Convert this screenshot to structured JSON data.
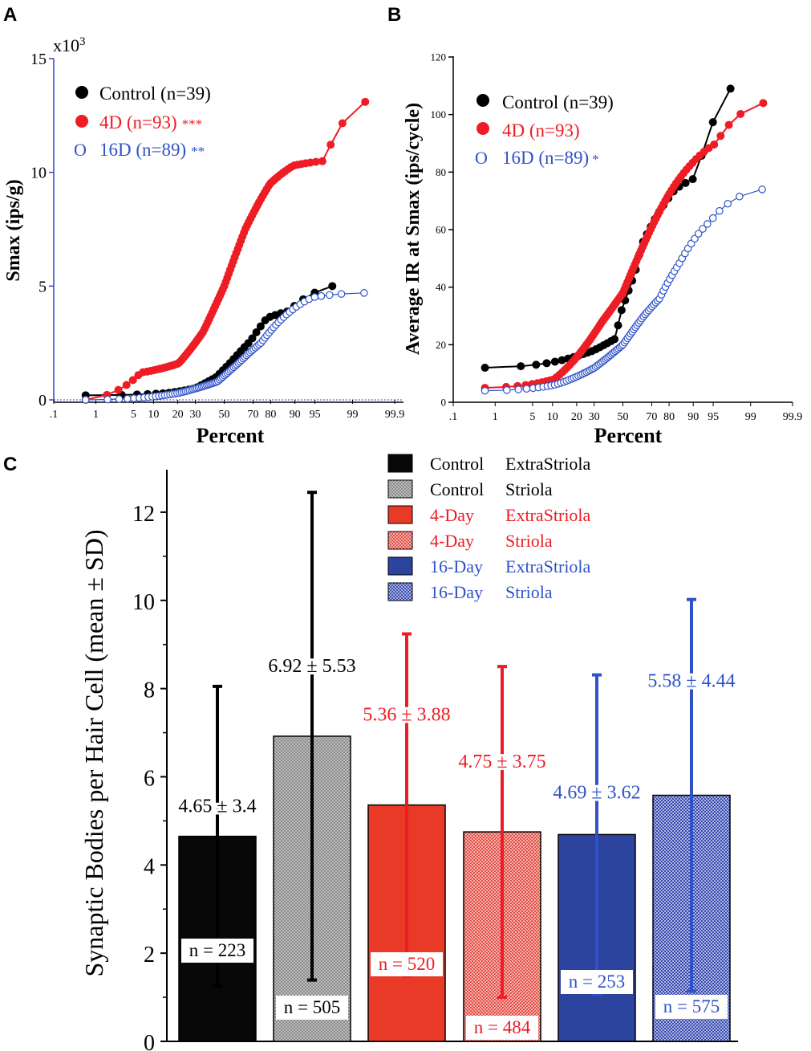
{
  "colors": {
    "control": "#000000",
    "d4": "#ee1c24",
    "d16": "#2f52c8",
    "bar_control": "#080808",
    "bar_d4": "#e83a26",
    "bar_d16": "#2d449f",
    "axis_blue": "#3344cc"
  },
  "chart_data": [
    {
      "panel": "A",
      "type": "scatter",
      "panel_label": "A",
      "xlabel": "Percent",
      "ylabel": "Smax (ips/g)",
      "y_multiplier": "x10",
      "y_multiplier_exp": "3",
      "x_scale": "probability",
      "x_ticks": [
        0.1,
        1,
        5,
        10,
        20,
        30,
        50,
        70,
        80,
        90,
        95,
        99,
        99.9
      ],
      "x_tick_labels": [
        ".1",
        "1",
        "5",
        "10",
        "20",
        "30",
        "50",
        "70",
        "80",
        "90",
        "95",
        "99",
        "99.9"
      ],
      "ylim": [
        0,
        15
      ],
      "y_ticks": [
        0,
        5,
        10,
        15
      ],
      "y_tick_labels": [
        "0",
        "5",
        "10",
        "15"
      ],
      "legend": [
        {
          "marker": "●",
          "label": "Control (n=39)",
          "sig": ""
        },
        {
          "marker": "●",
          "label": "4D (n=93)",
          "sig": "***"
        },
        {
          "marker": "O",
          "label": "16D (n=89)",
          "sig": "**"
        }
      ],
      "series": [
        {
          "name": "Control",
          "n": 39,
          "marker": "filled",
          "min": 0.2,
          "max": 5.0,
          "last_pct": 97.5,
          "knots": [
            [
              0,
              0.2
            ],
            [
              0.15,
              0.3
            ],
            [
              0.3,
              0.5
            ],
            [
              0.45,
              1.0
            ],
            [
              0.55,
              1.6
            ],
            [
              0.7,
              2.6
            ],
            [
              0.8,
              3.6
            ],
            [
              0.9,
              3.9
            ],
            [
              1,
              5.0
            ]
          ]
        },
        {
          "name": "4D",
          "n": 93,
          "marker": "filled",
          "min": 0.0,
          "max": 13.1,
          "last_pct": 99.47,
          "knots": [
            [
              0,
              0.0
            ],
            [
              0.06,
              1.2
            ],
            [
              0.2,
              1.6
            ],
            [
              0.35,
              3.0
            ],
            [
              0.5,
              5.0
            ],
            [
              0.65,
              7.5
            ],
            [
              0.8,
              9.5
            ],
            [
              0.9,
              10.3
            ],
            [
              0.97,
              10.5
            ],
            [
              1,
              13.1
            ]
          ]
        },
        {
          "name": "16D",
          "n": 89,
          "marker": "open",
          "min": 0.0,
          "max": 4.7,
          "last_pct": 99.44,
          "knots": [
            [
              0,
              0.0
            ],
            [
              0.2,
              0.3
            ],
            [
              0.45,
              0.8
            ],
            [
              0.6,
              1.6
            ],
            [
              0.75,
              2.5
            ],
            [
              0.85,
              3.5
            ],
            [
              0.95,
              4.5
            ],
            [
              1,
              4.7
            ]
          ]
        }
      ]
    },
    {
      "panel": "B",
      "type": "scatter",
      "panel_label": "B",
      "xlabel": "Percent",
      "ylabel": "Average IR at Smax (ips/cycle)",
      "x_scale": "probability",
      "x_ticks": [
        0.1,
        1,
        5,
        10,
        20,
        30,
        50,
        70,
        80,
        90,
        95,
        99,
        99.9
      ],
      "x_tick_labels": [
        ".1",
        "1",
        "5",
        "10",
        "20",
        "30",
        "50",
        "70",
        "80",
        "90",
        "95",
        "99",
        "99.9"
      ],
      "ylim": [
        0,
        120
      ],
      "y_ticks": [
        0,
        20,
        40,
        60,
        80,
        100,
        120
      ],
      "y_tick_labels": [
        "0",
        "20",
        "40",
        "60",
        "80",
        "100",
        "120"
      ],
      "legend": [
        {
          "marker": "●",
          "label": "Control (n=39)",
          "sig": ""
        },
        {
          "marker": "●",
          "label": "4D (n=93)",
          "sig": ""
        },
        {
          "marker": "O",
          "label": "16D (n=89)",
          "sig": "*"
        }
      ],
      "series": [
        {
          "name": "Control",
          "n": 39,
          "marker": "filled",
          "min": 12,
          "max": 109,
          "last_pct": 97.5,
          "knots": [
            [
              0,
              12
            ],
            [
              0.3,
              18
            ],
            [
              0.45,
              22
            ],
            [
              0.5,
              32
            ],
            [
              0.6,
              45
            ],
            [
              0.65,
              55
            ],
            [
              0.75,
              65
            ],
            [
              0.85,
              74
            ],
            [
              0.93,
              78
            ],
            [
              1,
              109
            ]
          ]
        },
        {
          "name": "4D",
          "n": 93,
          "marker": "filled",
          "min": 5,
          "max": 104,
          "last_pct": 99.47,
          "knots": [
            [
              0,
              5
            ],
            [
              0.1,
              8
            ],
            [
              0.2,
              16
            ],
            [
              0.35,
              28
            ],
            [
              0.5,
              38
            ],
            [
              0.65,
              55
            ],
            [
              0.8,
              72
            ],
            [
              0.9,
              83
            ],
            [
              0.96,
              90
            ],
            [
              1,
              104
            ]
          ]
        },
        {
          "name": "16D",
          "n": 89,
          "marker": "open",
          "min": 4,
          "max": 74,
          "last_pct": 99.44,
          "knots": [
            [
              0,
              4
            ],
            [
              0.1,
              6
            ],
            [
              0.3,
              12
            ],
            [
              0.5,
              20
            ],
            [
              0.65,
              30
            ],
            [
              0.75,
              36
            ],
            [
              0.85,
              48
            ],
            [
              0.95,
              63
            ],
            [
              1,
              74
            ]
          ]
        }
      ]
    },
    {
      "panel": "C",
      "type": "bar",
      "panel_label": "C",
      "ylabel": "Synaptic Bodies per Hair Cell (mean ± SD)",
      "ylim": [
        0,
        13
      ],
      "y_ticks": [
        0,
        2,
        4,
        6,
        8,
        10,
        12
      ],
      "y_tick_labels": [
        "0",
        "2",
        "4",
        "6",
        "8",
        "10",
        "12"
      ],
      "categories": [
        "Control ExtraStriola",
        "Control Striola",
        "4-Day ExtraStriola",
        "4-Day Striola",
        "16-Day ExtraStriola",
        "16-Day Striola"
      ],
      "values": [
        4.65,
        6.92,
        5.36,
        4.75,
        4.69,
        5.58
      ],
      "errors": [
        3.4,
        5.53,
        3.88,
        3.75,
        3.62,
        4.44
      ],
      "value_labels": [
        "4.65 ± 3.4",
        "6.92 ± 5.53",
        "5.36 ± 3.88",
        "4.75 ± 3.75",
        "4.69 ± 3.62",
        "5.58 ± 4.44"
      ],
      "n_labels": [
        "n = 223",
        "n = 505",
        "n = 520",
        "n = 484",
        "n = 253",
        "n = 575"
      ],
      "legend": [
        {
          "label1": "Control",
          "label2": "ExtraStriola"
        },
        {
          "label1": "Control",
          "label2": "Striola"
        },
        {
          "label1": "4-Day",
          "label2": "ExtraStriola"
        },
        {
          "label1": "4-Day",
          "label2": "Striola"
        },
        {
          "label1": "16-Day",
          "label2": "ExtraStriola"
        },
        {
          "label1": "16-Day",
          "label2": "Striola"
        }
      ]
    }
  ]
}
